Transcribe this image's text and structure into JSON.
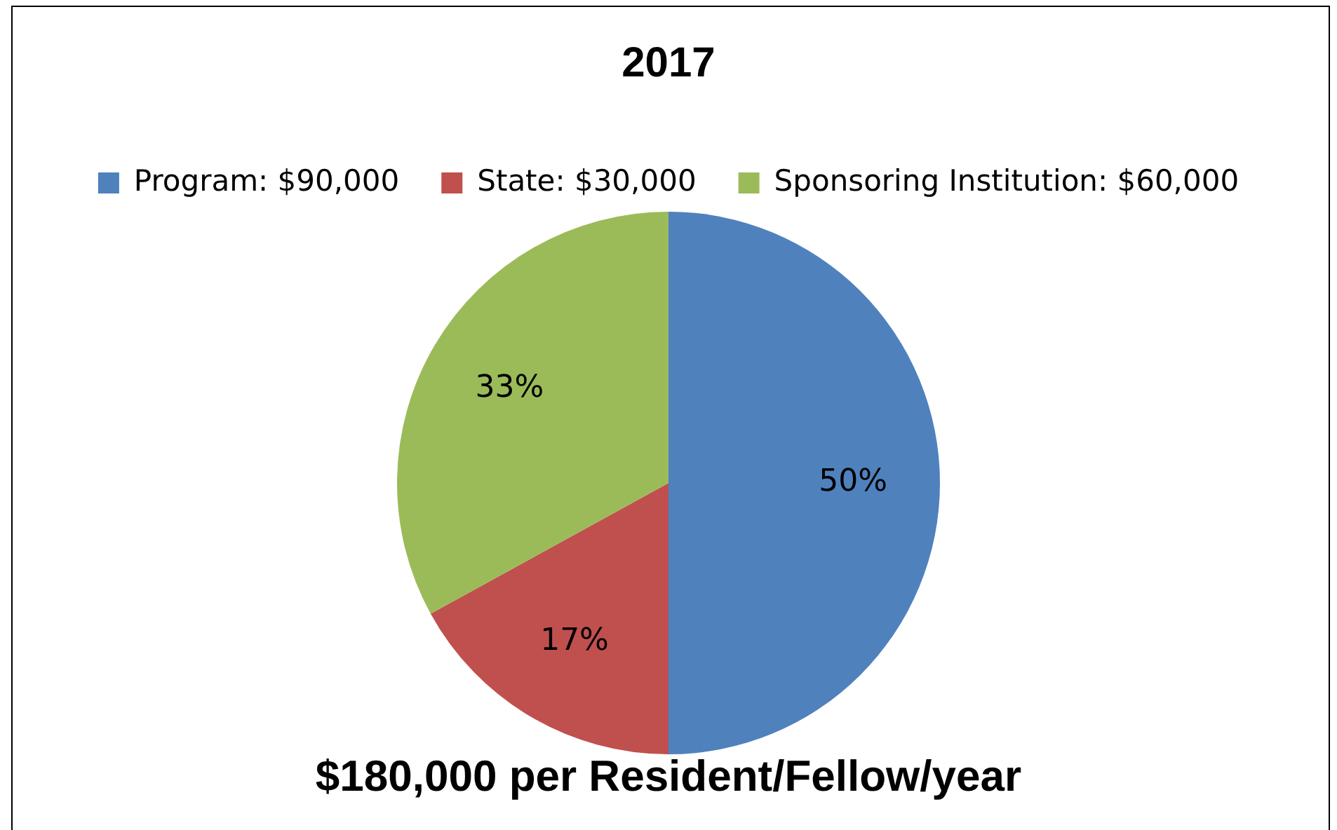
{
  "chart_data": {
    "type": "pie",
    "title": "2017",
    "categories": [
      "Program: $90,000",
      "State: $30,000",
      "Sponsoring Institution: $60,000"
    ],
    "values": [
      50,
      17,
      33
    ],
    "colors": [
      "#4f81bd",
      "#c0504d",
      "#9bbb59"
    ],
    "value_labels": [
      "50%",
      "17%",
      "33%"
    ],
    "legend": "top",
    "annotations": [
      "$180,000 per Resident/Fellow/year"
    ]
  }
}
